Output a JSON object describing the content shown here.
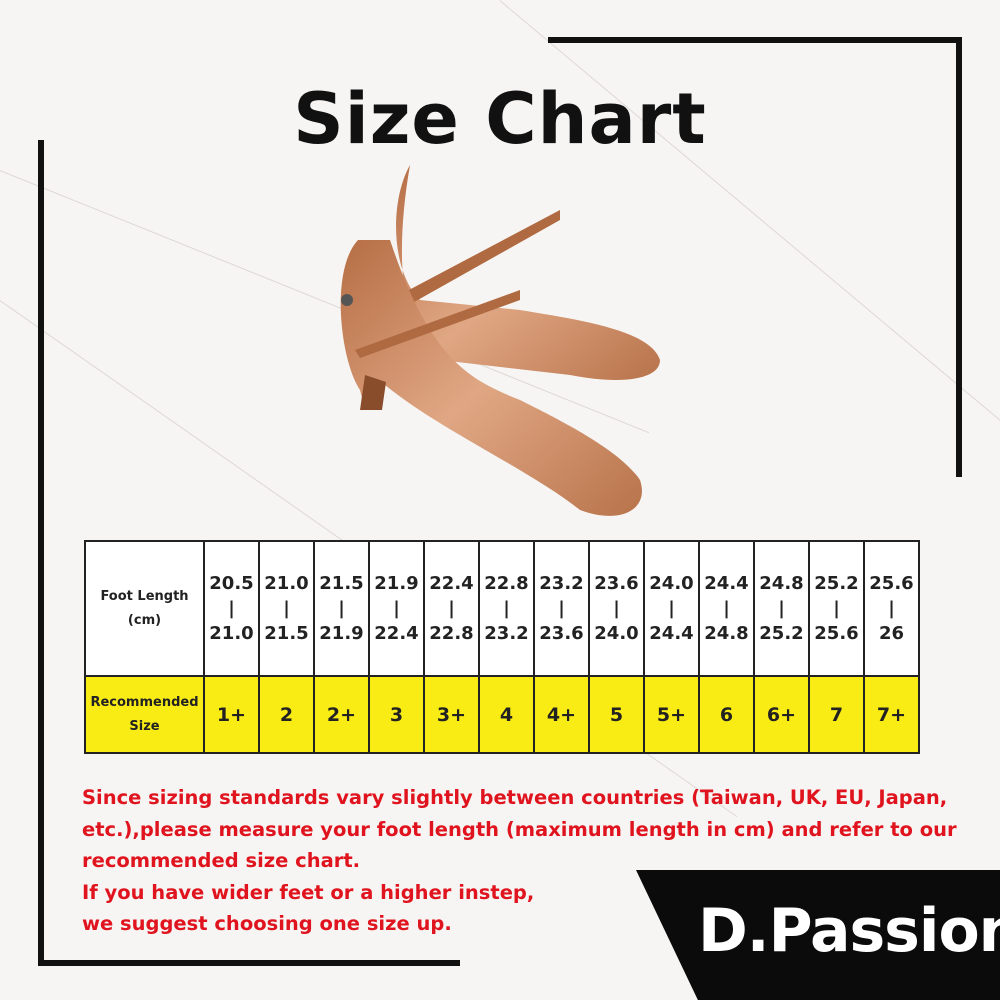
{
  "title": "Size Chart",
  "table": {
    "foot_length_label_line1": "Foot Length",
    "foot_length_label_line2": "(cm)",
    "size_label_line1": "Recommended",
    "size_label_line2": "Size",
    "columns": [
      {
        "from": "20.5",
        "to": "21.0",
        "size": "1+"
      },
      {
        "from": "21.0",
        "to": "21.5",
        "size": "2"
      },
      {
        "from": "21.5",
        "to": "21.9",
        "size": "2+"
      },
      {
        "from": "21.9",
        "to": "22.4",
        "size": "3"
      },
      {
        "from": "22.4",
        "to": "22.8",
        "size": "3+"
      },
      {
        "from": "22.8",
        "to": "23.2",
        "size": "4"
      },
      {
        "from": "23.2",
        "to": "23.6",
        "size": "4+"
      },
      {
        "from": "23.6",
        "to": "24.0",
        "size": "5"
      },
      {
        "from": "24.0",
        "to": "24.4",
        "size": "5+"
      },
      {
        "from": "24.4",
        "to": "24.8",
        "size": "6"
      },
      {
        "from": "24.8",
        "to": "25.2",
        "size": "6+"
      },
      {
        "from": "25.2",
        "to": "25.6",
        "size": "7"
      },
      {
        "from": "25.6",
        "to": "26",
        "size": "7+"
      }
    ],
    "separator": "|"
  },
  "notes": [
    "Since sizing standards vary slightly between countries (Taiwan, UK, EU, Japan,",
    "etc.),please measure your foot length (maximum length in cm) and refer to our",
    "recommended size chart.",
    "If you have wider feet or a higher instep,",
    "we suggest choosing one size up."
  ],
  "logo": "D.Passion",
  "colors": {
    "highlight": "#f8ec14",
    "note_text": "#e0141e",
    "frame": "#111111",
    "shoe": "#c98a5f"
  }
}
